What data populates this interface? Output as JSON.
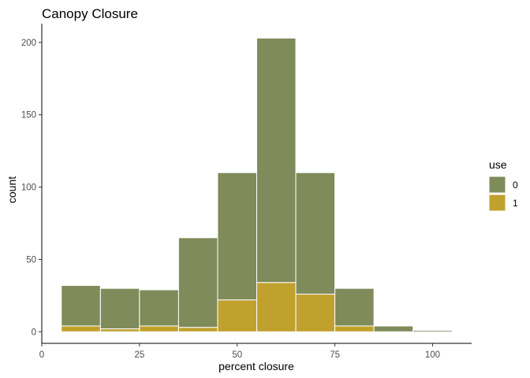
{
  "chart_data": {
    "type": "bar",
    "subtype": "stacked-histogram",
    "title": "Canopy Closure",
    "xlabel": "percent closure",
    "ylabel": "count",
    "xlim": [
      0,
      110
    ],
    "ylim": [
      -8,
      213
    ],
    "x_ticks": [
      0,
      25,
      50,
      75,
      100
    ],
    "y_ticks": [
      0,
      50,
      100,
      150,
      200
    ],
    "grid": false,
    "legend": {
      "title": "use",
      "position": "right",
      "entries": [
        {
          "label": "0",
          "color": "#7f8b5a"
        },
        {
          "label": "1",
          "color": "#c0a12e"
        }
      ]
    },
    "bins": [
      {
        "start": 5,
        "end": 15,
        "total": 32,
        "use1": 4
      },
      {
        "start": 15,
        "end": 25,
        "total": 30,
        "use1": 2
      },
      {
        "start": 25,
        "end": 35,
        "total": 29,
        "use1": 4
      },
      {
        "start": 35,
        "end": 45,
        "total": 65,
        "use1": 3
      },
      {
        "start": 45,
        "end": 55,
        "total": 110,
        "use1": 22
      },
      {
        "start": 55,
        "end": 65,
        "total": 203,
        "use1": 34
      },
      {
        "start": 65,
        "end": 75,
        "total": 110,
        "use1": 26
      },
      {
        "start": 75,
        "end": 85,
        "total": 30,
        "use1": 4
      },
      {
        "start": 85,
        "end": 95,
        "total": 4,
        "use1": 0
      },
      {
        "start": 95,
        "end": 105,
        "total": 1,
        "use1": 0
      }
    ]
  }
}
